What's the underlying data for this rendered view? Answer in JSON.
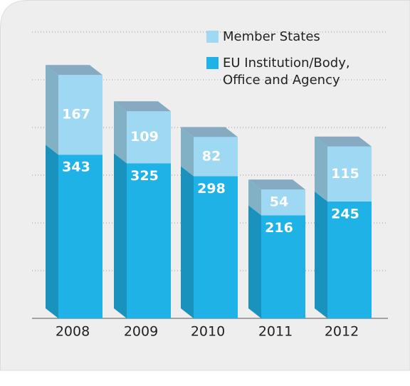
{
  "chart_data": {
    "type": "bar3d_stacked",
    "categories": [
      "2008",
      "2009",
      "2010",
      "2011",
      "2012"
    ],
    "series": [
      {
        "name": "EU Institution/Body, Office and Agency",
        "color": "#1eb2e6",
        "values": [
          343,
          325,
          298,
          216,
          245
        ]
      },
      {
        "name": "Member States",
        "color": "#9fd8f2",
        "values": [
          167,
          109,
          82,
          54,
          115
        ]
      }
    ],
    "ylim": [
      0,
      600
    ],
    "yticks": [
      0,
      100,
      200,
      300,
      400,
      500,
      600
    ],
    "grid": true
  }
}
